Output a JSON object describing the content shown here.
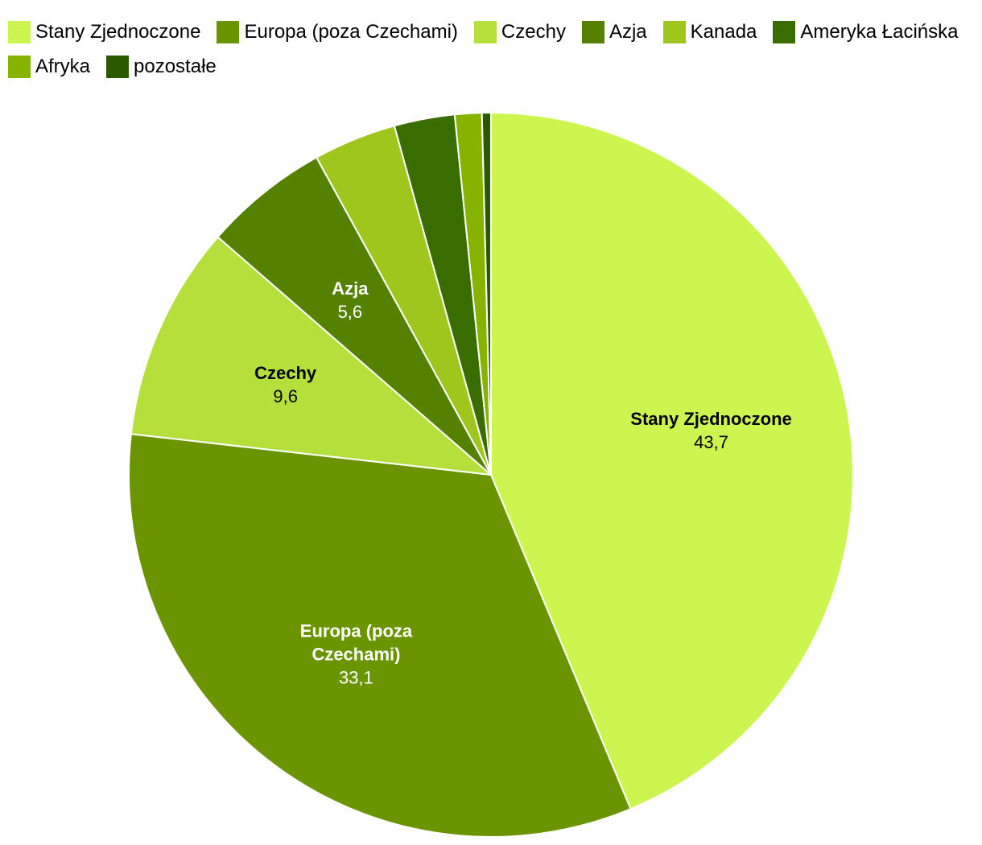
{
  "chart_data": {
    "type": "pie",
    "categories": [
      "Stany Zjednoczone",
      "Europa (poza Czechami)",
      "Czechy",
      "Azja",
      "Kanada",
      "Ameryka Łacińska",
      "Afryka",
      "pozostałe"
    ],
    "values": [
      43.7,
      33.1,
      9.6,
      5.6,
      3.7,
      2.7,
      1.2,
      0.4
    ],
    "value_labels": [
      "43,7",
      "33,1",
      "9,6",
      "5,6",
      null,
      null,
      null,
      null
    ],
    "colors": [
      "#ccf550",
      "#6a9500",
      "#b5e03c",
      "#548200",
      "#9ec61c",
      "#3a6d00",
      "#86b300",
      "#2a5a00"
    ],
    "legend": "top"
  }
}
